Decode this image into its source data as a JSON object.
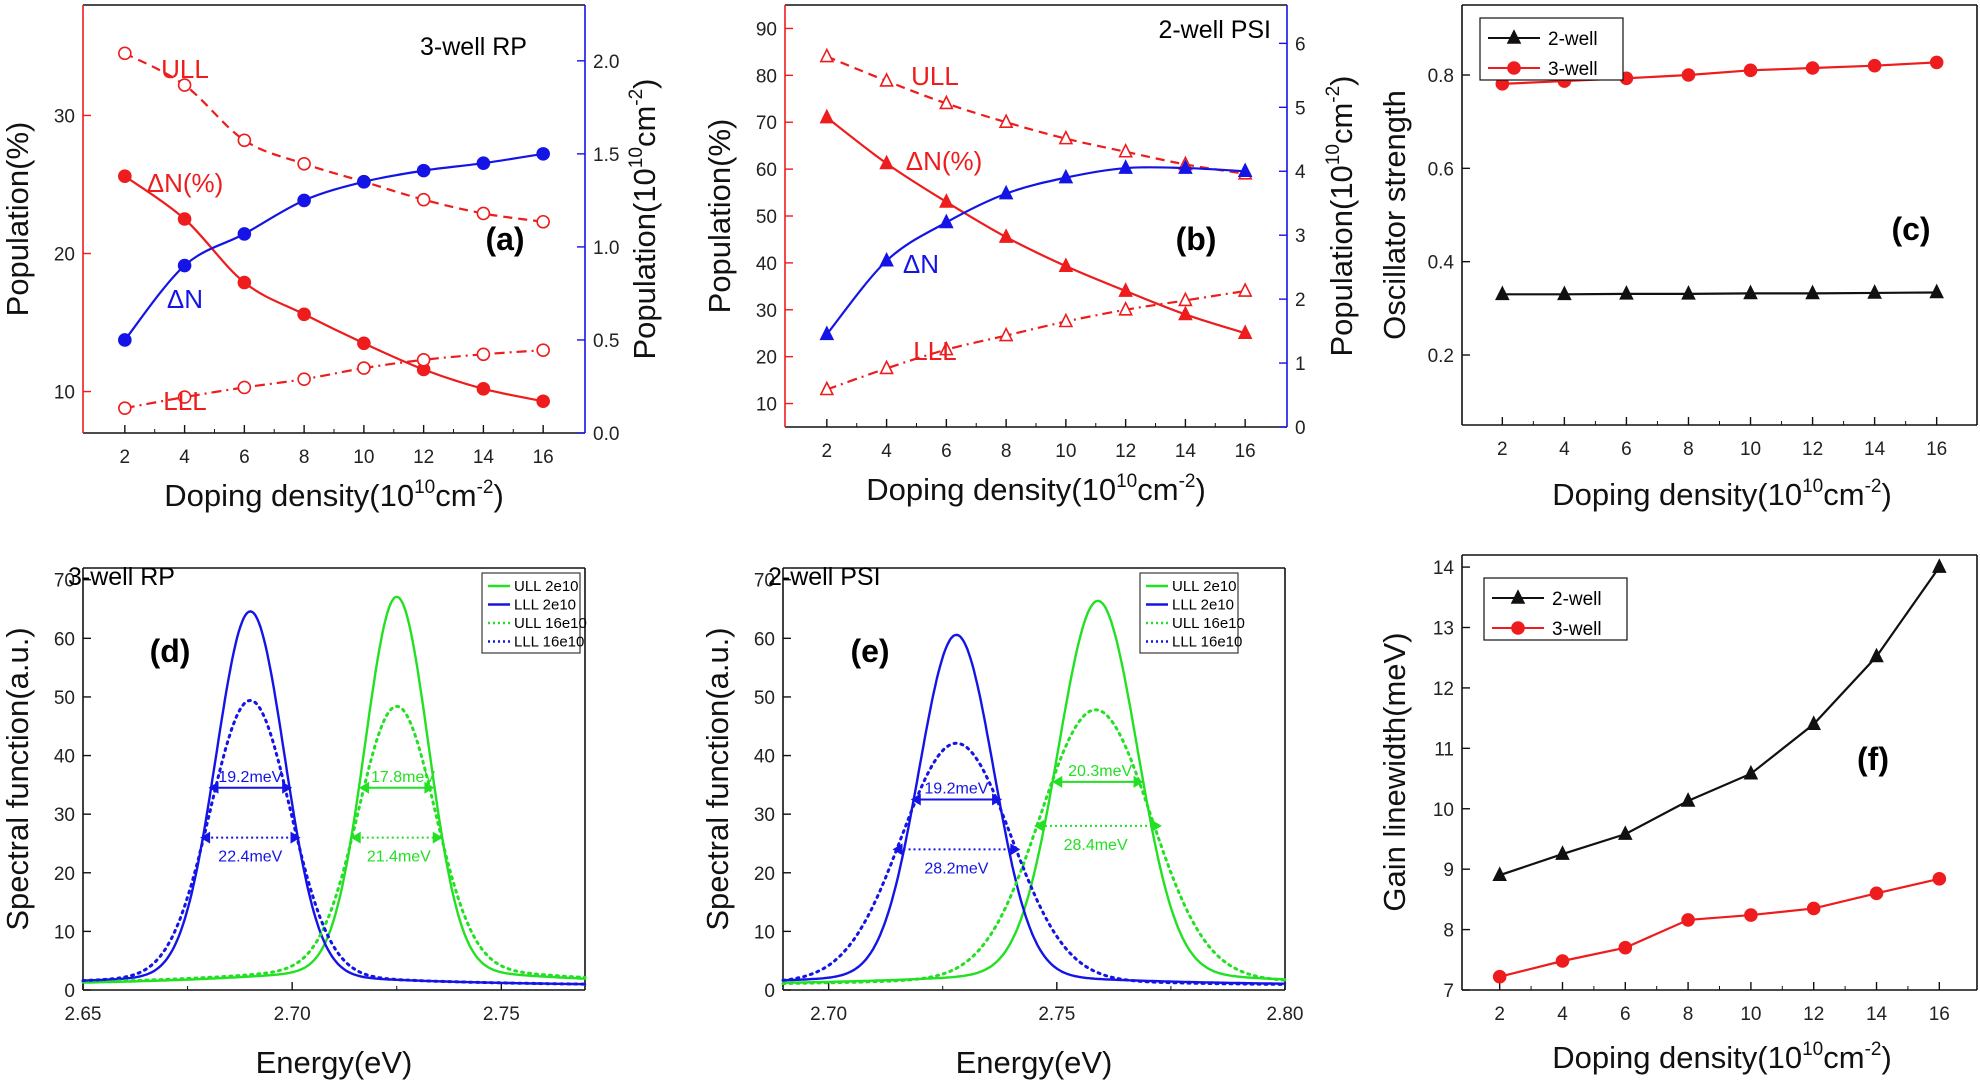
{
  "colors": {
    "red": "#ee1c1c",
    "blue": "#1414e6",
    "green": "#22e022",
    "black": "#111111",
    "gray": "#666666"
  },
  "chart_data": [
    {
      "id": "a",
      "type": "line",
      "panel_label": "(a)",
      "title": "3-well RP",
      "x": [
        2,
        4,
        6,
        8,
        10,
        12,
        14,
        16
      ],
      "xlim": [
        0.6,
        17.4
      ],
      "xticks": [
        2,
        4,
        6,
        8,
        10,
        12,
        14,
        16
      ],
      "xlabel": {
        "prefix": "Doping density(10",
        "sup1": "10",
        "mid": "cm",
        "sup2": "-2",
        "suffix": ")"
      },
      "ylabel_left": "Population(%)",
      "ylim_left": [
        7,
        38
      ],
      "yticks_left": [
        10,
        20,
        30
      ],
      "ylabel_right": {
        "prefix": "Population(10",
        "sup1": "10",
        "mid": "cm",
        "sup2": "-2",
        "suffix": ")"
      },
      "ylim_right": [
        0,
        2.3
      ],
      "yticks_right": [
        0.0,
        0.5,
        1.0,
        1.5,
        2.0
      ],
      "ytick_right_labels": [
        "0.0",
        "0.5",
        "1.0",
        "1.5",
        "2.0"
      ],
      "series": [
        {
          "name": "ULL",
          "axis": "left",
          "values": [
            34.5,
            32.2,
            28.2,
            26.5,
            25.2,
            23.9,
            22.9,
            22.3
          ],
          "color": "red",
          "marker": "open-circle",
          "dash": "dashed"
        },
        {
          "name": "ΔN(%)",
          "axis": "left",
          "values": [
            25.6,
            22.5,
            17.9,
            15.6,
            13.5,
            11.6,
            10.2,
            9.3
          ],
          "color": "red",
          "marker": "filled-circle",
          "dash": "solid"
        },
        {
          "name": "LLL",
          "axis": "left",
          "values": [
            8.8,
            9.6,
            10.3,
            10.9,
            11.7,
            12.3,
            12.7,
            13.0
          ],
          "color": "red",
          "marker": "open-circle",
          "dash": "dashdot"
        },
        {
          "name": "ΔN",
          "axis": "right",
          "values": [
            0.5,
            0.9,
            1.07,
            1.25,
            1.35,
            1.41,
            1.45,
            1.5
          ],
          "color": "blue",
          "marker": "filled-circle",
          "dash": "solid"
        }
      ],
      "annotations": [
        "ULL",
        "ΔN(%)",
        "ΔN",
        "LLL"
      ]
    },
    {
      "id": "b",
      "type": "line",
      "panel_label": "(b)",
      "title": "2-well PSI",
      "x": [
        2,
        4,
        6,
        8,
        10,
        12,
        14,
        16
      ],
      "xlim": [
        0.6,
        17.4
      ],
      "xticks": [
        2,
        4,
        6,
        8,
        10,
        12,
        14,
        16
      ],
      "xlabel": {
        "prefix": "Doping density(10",
        "sup1": "10",
        "mid": "cm",
        "sup2": "-2",
        "suffix": ")"
      },
      "ylabel_left": "Population(%)",
      "ylim_left": [
        5,
        95
      ],
      "yticks_left": [
        10,
        20,
        30,
        40,
        50,
        60,
        70,
        80,
        90
      ],
      "ylabel_right": {
        "prefix": "Population(10",
        "sup1": "10",
        "mid": "cm",
        "sup2": "-2",
        "suffix": ")"
      },
      "ylim_right": [
        0,
        6.6
      ],
      "yticks_right": [
        0,
        1,
        2,
        3,
        4,
        5,
        6
      ],
      "ytick_right_labels": [
        "0",
        "1",
        "2",
        "3",
        "4",
        "5",
        "6"
      ],
      "series": [
        {
          "name": "ULL",
          "axis": "left",
          "values": [
            84,
            78.8,
            74,
            70,
            66.5,
            63.7,
            61,
            59
          ],
          "color": "red",
          "marker": "open-triangle",
          "dash": "dashed"
        },
        {
          "name": "ΔN(%)",
          "axis": "left",
          "values": [
            71,
            61.2,
            53,
            45.5,
            39.3,
            34,
            29,
            25
          ],
          "color": "red",
          "marker": "filled-triangle",
          "dash": "solid"
        },
        {
          "name": "LLL",
          "axis": "left",
          "values": [
            13,
            17.5,
            21.5,
            24.5,
            27.5,
            30,
            32,
            34
          ],
          "color": "red",
          "marker": "open-triangle",
          "dash": "dashdot"
        },
        {
          "name": "ΔN",
          "axis": "right",
          "values": [
            1.45,
            2.6,
            3.2,
            3.65,
            3.9,
            4.05,
            4.05,
            4.0
          ],
          "color": "blue",
          "marker": "filled-triangle",
          "dash": "solid"
        }
      ],
      "annotations": [
        "ULL",
        "ΔN(%)",
        "ΔN",
        "LLL"
      ]
    },
    {
      "id": "c",
      "type": "line",
      "panel_label": "(c)",
      "x": [
        2,
        4,
        6,
        8,
        10,
        12,
        14,
        16
      ],
      "xlim": [
        0.7,
        17.3
      ],
      "xticks": [
        2,
        4,
        6,
        8,
        10,
        12,
        14,
        16
      ],
      "xlabel": {
        "prefix": "Doping density(10",
        "sup1": "10",
        "mid": "cm",
        "sup2": "-2",
        "suffix": ")"
      },
      "ylabel_left": "Oscillator strength",
      "ylim_left": [
        0.05,
        0.95
      ],
      "yticks_left": [
        0.2,
        0.4,
        0.6,
        0.8
      ],
      "ytick_left_labels": [
        "0.2",
        "0.4",
        "0.6",
        "0.8"
      ],
      "legend": "top-left",
      "series": [
        {
          "name": "2-well",
          "axis": "left",
          "values": [
            0.33,
            0.33,
            0.331,
            0.331,
            0.332,
            0.332,
            0.333,
            0.334
          ],
          "color": "black",
          "marker": "filled-triangle",
          "dash": "solid"
        },
        {
          "name": "3-well",
          "axis": "left",
          "values": [
            0.781,
            0.787,
            0.793,
            0.8,
            0.81,
            0.815,
            0.82,
            0.827
          ],
          "color": "red",
          "marker": "filled-circle",
          "dash": "solid"
        }
      ]
    },
    {
      "id": "d",
      "type": "line",
      "panel_label": "(d)",
      "title": "3-well RP",
      "xlabel": "Energy(eV)",
      "ylabel_left": "Spectral function(a.u.)",
      "xlim": [
        2.65,
        2.77
      ],
      "xticks": [
        2.65,
        2.7,
        2.75
      ],
      "xtick_labels": [
        "2.65",
        "2.70",
        "2.75"
      ],
      "ylim_left": [
        0,
        72
      ],
      "yticks_left": [
        0,
        10,
        20,
        30,
        40,
        50,
        60,
        70
      ],
      "legend": "top-right",
      "series": [
        {
          "name": "ULL 2e10",
          "peak_x": 2.725,
          "peak_y": 66.5,
          "fwhm": 0.0178,
          "baseline": 3.0,
          "color": "green",
          "dash": "solid"
        },
        {
          "name": "LLL  2e10",
          "peak_x": 2.69,
          "peak_y": 64.0,
          "fwhm": 0.0192,
          "baseline": 2.0,
          "color": "blue",
          "dash": "solid"
        },
        {
          "name": "ULL 16e10",
          "peak_x": 2.725,
          "peak_y": 47.8,
          "fwhm": 0.0214,
          "baseline": 3.5,
          "color": "green",
          "dash": "dotted"
        },
        {
          "name": "LLL  16e10",
          "peak_x": 2.69,
          "peak_y": 48.8,
          "fwhm": 0.0224,
          "baseline": 2.0,
          "color": "blue",
          "dash": "dotted"
        }
      ],
      "widths": [
        {
          "label": "19.2meV",
          "x1": 2.68,
          "x2": 2.7,
          "y": 34.5,
          "color": "blue",
          "dash": "solid",
          "text_x": 2.69
        },
        {
          "label": "22.4meV",
          "x1": 2.678,
          "x2": 2.702,
          "y": 26,
          "color": "blue",
          "dash": "dotted",
          "text_x": 2.69
        },
        {
          "label": "17.8meV",
          "x1": 2.716,
          "x2": 2.734,
          "y": 34.5,
          "color": "green",
          "dash": "solid",
          "text_x": 2.7265
        },
        {
          "label": "21.4meV",
          "x1": 2.714,
          "x2": 2.736,
          "y": 26,
          "color": "green",
          "dash": "dotted",
          "text_x": 2.7255
        }
      ]
    },
    {
      "id": "e",
      "type": "line",
      "panel_label": "(e)",
      "title": "2-well PSI",
      "xlabel": "Energy(eV)",
      "ylabel_left": "Spectral function(a.u.)",
      "xlim": [
        2.69,
        2.8
      ],
      "xticks": [
        2.7,
        2.75,
        2.8
      ],
      "xtick_labels": [
        "2.70",
        "2.75",
        "2.80"
      ],
      "ylim_left": [
        0,
        72
      ],
      "yticks_left": [
        0,
        10,
        20,
        30,
        40,
        50,
        60,
        70
      ],
      "legend": "top-right",
      "series": [
        {
          "name": "ULL 2e10",
          "peak_x": 2.759,
          "peak_y": 65.8,
          "fwhm": 0.0203,
          "baseline": 2.5,
          "color": "green",
          "dash": "solid"
        },
        {
          "name": "LLL  2e10",
          "peak_x": 2.728,
          "peak_y": 60.0,
          "fwhm": 0.0192,
          "baseline": 2.0,
          "color": "blue",
          "dash": "solid"
        },
        {
          "name": "ULL 16e10",
          "peak_x": 2.7585,
          "peak_y": 47.2,
          "fwhm": 0.0284,
          "baseline": 2.0,
          "color": "green",
          "dash": "dotted"
        },
        {
          "name": "LLL  16e10",
          "peak_x": 2.728,
          "peak_y": 41.5,
          "fwhm": 0.0282,
          "baseline": 1.5,
          "color": "blue",
          "dash": "dotted"
        }
      ],
      "widths": [
        {
          "label": "19.2meV",
          "x1": 2.718,
          "x2": 2.738,
          "y": 32.5,
          "color": "blue",
          "dash": "solid",
          "text_x": 2.728
        },
        {
          "label": "28.2meV",
          "x1": 2.714,
          "x2": 2.742,
          "y": 24,
          "color": "blue",
          "dash": "dotted",
          "text_x": 2.728
        },
        {
          "label": "20.3meV",
          "x1": 2.749,
          "x2": 2.769,
          "y": 35.5,
          "color": "green",
          "dash": "solid",
          "text_x": 2.7595
        },
        {
          "label": "28.4meV",
          "x1": 2.745,
          "x2": 2.773,
          "y": 28,
          "color": "green",
          "dash": "dotted",
          "text_x": 2.7585
        }
      ]
    },
    {
      "id": "f",
      "type": "line",
      "panel_label": "(f)",
      "x": [
        2,
        4,
        6,
        8,
        10,
        12,
        14,
        16
      ],
      "xlim": [
        0.8,
        17.2
      ],
      "xticks": [
        2,
        4,
        6,
        8,
        10,
        12,
        14,
        16
      ],
      "xlabel": {
        "prefix": "Doping density(10",
        "sup1": "10",
        "mid": "cm",
        "sup2": "-2",
        "suffix": ")"
      },
      "ylabel_left": "Gain linewidth(meV)",
      "ylim_left": [
        7,
        14.2
      ],
      "yticks_left": [
        7,
        8,
        9,
        10,
        11,
        12,
        13,
        14
      ],
      "legend": "top-left",
      "series": [
        {
          "name": "2-well",
          "axis": "left",
          "values": [
            8.9,
            9.25,
            9.58,
            10.13,
            10.58,
            11.4,
            12.52,
            14.0
          ],
          "color": "black",
          "marker": "filled-triangle",
          "dash": "solid"
        },
        {
          "name": "3-well",
          "axis": "left",
          "values": [
            7.22,
            7.48,
            7.7,
            8.16,
            8.24,
            8.35,
            8.6,
            8.84
          ],
          "color": "red",
          "marker": "filled-circle",
          "dash": "solid"
        }
      ]
    }
  ]
}
